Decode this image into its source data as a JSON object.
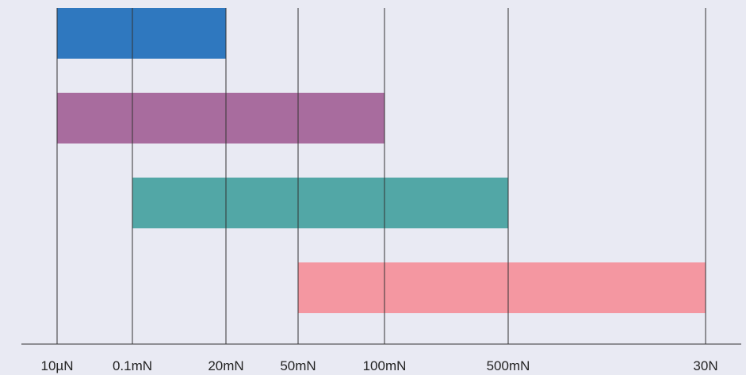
{
  "chart_data": {
    "type": "bar",
    "orientation": "horizontal-range",
    "title": "",
    "xlabel": "",
    "ylabel": "",
    "x_ticks": [
      "10µN",
      "0.1mN",
      "20mN",
      "50mN",
      "100mN",
      "500mN",
      "30N"
    ],
    "grid": "vertical lines at each tick",
    "legend": "none",
    "series": [
      {
        "start": "10µN",
        "end": "20mN",
        "color": "#2f78bf"
      },
      {
        "start": "10µN",
        "end": "100mN",
        "color": "#a86c9e"
      },
      {
        "start": "0.1mN",
        "end": "500mN",
        "color": "#52a7a6"
      },
      {
        "start": "50mN",
        "end": "30N",
        "color": "#f497a1"
      }
    ],
    "colors": {
      "background": "#e9eaf3",
      "gridline": "#333333",
      "axis": "#333333"
    }
  }
}
